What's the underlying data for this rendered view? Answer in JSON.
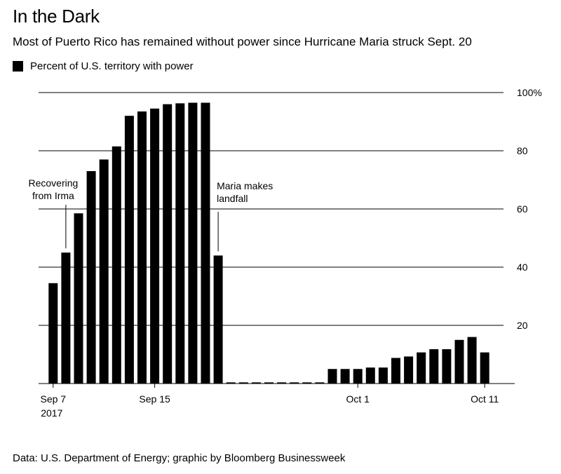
{
  "title": "In the Dark",
  "subtitle": "Most of Puerto Rico has remained without power since Hurricane Maria struck Sept. 20",
  "legend": {
    "label": "Percent of U.S. territory with power",
    "color": "#000000"
  },
  "source": "Data: U.S. Department of Energy; graphic by Bloomberg Businessweek",
  "chart_data": {
    "type": "bar",
    "title": "In the Dark",
    "ylabel": "Percent of U.S. territory with power",
    "xlabel": "",
    "ylim": [
      0,
      100
    ],
    "yticks": [
      {
        "value": 20,
        "label": "20"
      },
      {
        "value": 40,
        "label": "40"
      },
      {
        "value": 60,
        "label": "60"
      },
      {
        "value": 80,
        "label": "80"
      },
      {
        "value": 100,
        "label": "100%"
      }
    ],
    "grid": true,
    "xticks": [
      {
        "day": 0,
        "label": "Sep 7",
        "sublabel": "2017"
      },
      {
        "day": 8,
        "label": "Sep 15",
        "sublabel": ""
      },
      {
        "day": 24,
        "label": "Oct 1",
        "sublabel": ""
      },
      {
        "day": 34,
        "label": "Oct 11",
        "sublabel": ""
      }
    ],
    "start_date": "Sep 7",
    "days": [
      0,
      1,
      2,
      3,
      4,
      5,
      6,
      7,
      8,
      9,
      10,
      11,
      12,
      13,
      14,
      15,
      16,
      17,
      18,
      19,
      20,
      21,
      22,
      23,
      24,
      25,
      26,
      27,
      28,
      29,
      30,
      31,
      32,
      33,
      34
    ],
    "values": [
      34.5,
      45,
      58.5,
      73,
      77,
      81.5,
      92,
      93.5,
      94.5,
      96,
      96.3,
      96.5,
      96.5,
      44,
      0.4,
      0.4,
      0.4,
      0.4,
      0.4,
      0.4,
      0.4,
      0.4,
      5,
      5,
      5,
      5.5,
      5.5,
      8.8,
      9.3,
      10.7,
      11.8,
      11.8,
      15,
      16,
      10.7
    ],
    "color": "#000000",
    "annotations": [
      {
        "day": 1,
        "label_lines": [
          "Recovering",
          "from Irma"
        ]
      },
      {
        "day": 13,
        "label_lines": [
          "Maria makes",
          "landfall"
        ]
      }
    ]
  }
}
